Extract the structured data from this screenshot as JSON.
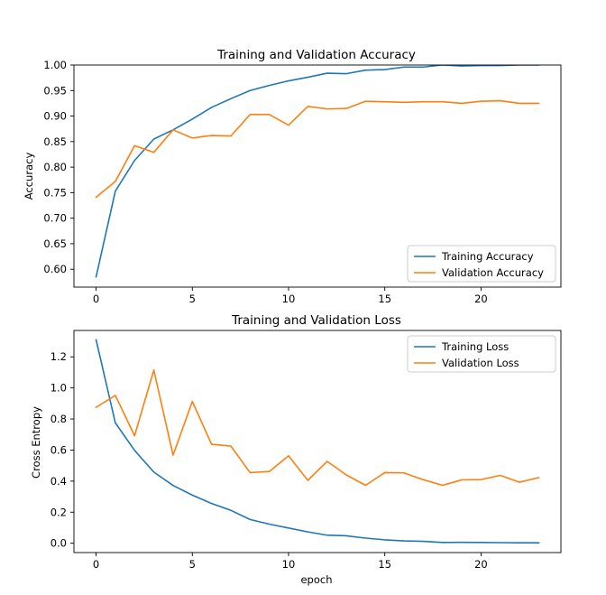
{
  "chart_data": [
    {
      "type": "line",
      "title": "Training and Validation Accuracy",
      "xlabel": "",
      "ylabel": "Accuracy",
      "xlim": [
        -1.15,
        24.15
      ],
      "ylim": [
        0.565,
        1.0
      ],
      "xticks": [
        0,
        5,
        10,
        15,
        20
      ],
      "xtick_labels": [
        "0",
        "5",
        "10",
        "15",
        "20"
      ],
      "yticks": [
        0.6,
        0.65,
        0.7,
        0.75,
        0.8,
        0.85,
        0.9,
        0.95,
        1.0
      ],
      "ytick_labels": [
        "0.60",
        "0.65",
        "0.70",
        "0.75",
        "0.80",
        "0.85",
        "0.90",
        "0.95",
        "1.00"
      ],
      "legend_position": "lower-right",
      "x": [
        0,
        1,
        2,
        3,
        4,
        5,
        6,
        7,
        8,
        9,
        10,
        11,
        12,
        13,
        14,
        15,
        16,
        17,
        18,
        19,
        20,
        21,
        22,
        23
      ],
      "series": [
        {
          "name": "Training Accuracy",
          "color": "#1f77b4",
          "values": [
            0.585,
            0.753,
            0.813,
            0.855,
            0.873,
            0.894,
            0.917,
            0.934,
            0.95,
            0.96,
            0.969,
            0.976,
            0.984,
            0.983,
            0.99,
            0.991,
            0.996,
            0.996,
            1.0,
            0.998,
            0.999,
            0.999,
            1.0,
            1.0
          ]
        },
        {
          "name": "Validation Accuracy",
          "color": "#ff7f0e",
          "values": [
            0.741,
            0.772,
            0.842,
            0.829,
            0.873,
            0.857,
            0.862,
            0.861,
            0.903,
            0.903,
            0.882,
            0.919,
            0.914,
            0.915,
            0.929,
            0.928,
            0.927,
            0.928,
            0.928,
            0.925,
            0.929,
            0.93,
            0.925,
            0.925
          ]
        }
      ]
    },
    {
      "type": "line",
      "title": "Training and Validation Loss",
      "xlabel": "epoch",
      "ylabel": "Cross Entropy",
      "xlim": [
        -1.15,
        24.15
      ],
      "ylim": [
        -0.06,
        1.37
      ],
      "xticks": [
        0,
        5,
        10,
        15,
        20
      ],
      "xtick_labels": [
        "0",
        "5",
        "10",
        "15",
        "20"
      ],
      "yticks": [
        0.0,
        0.2,
        0.4,
        0.6,
        0.8,
        1.0,
        1.2
      ],
      "ytick_labels": [
        "0.0",
        "0.2",
        "0.4",
        "0.6",
        "0.8",
        "1.0",
        "1.2"
      ],
      "legend_position": "upper-right",
      "x": [
        0,
        1,
        2,
        3,
        4,
        5,
        6,
        7,
        8,
        9,
        10,
        11,
        12,
        13,
        14,
        15,
        16,
        17,
        18,
        19,
        20,
        21,
        22,
        23
      ],
      "series": [
        {
          "name": "Training Loss",
          "color": "#1f77b4",
          "values": [
            1.31,
            0.775,
            0.598,
            0.458,
            0.372,
            0.31,
            0.256,
            0.212,
            0.153,
            0.123,
            0.098,
            0.073,
            0.052,
            0.048,
            0.033,
            0.022,
            0.015,
            0.012,
            0.005,
            0.006,
            0.005,
            0.004,
            0.003,
            0.003
          ]
        },
        {
          "name": "Validation Loss",
          "color": "#ff7f0e",
          "values": [
            0.875,
            0.952,
            0.692,
            1.115,
            0.567,
            0.913,
            0.637,
            0.626,
            0.455,
            0.462,
            0.563,
            0.405,
            0.527,
            0.44,
            0.373,
            0.455,
            0.453,
            0.409,
            0.373,
            0.408,
            0.41,
            0.437,
            0.393,
            0.423
          ]
        }
      ]
    }
  ]
}
